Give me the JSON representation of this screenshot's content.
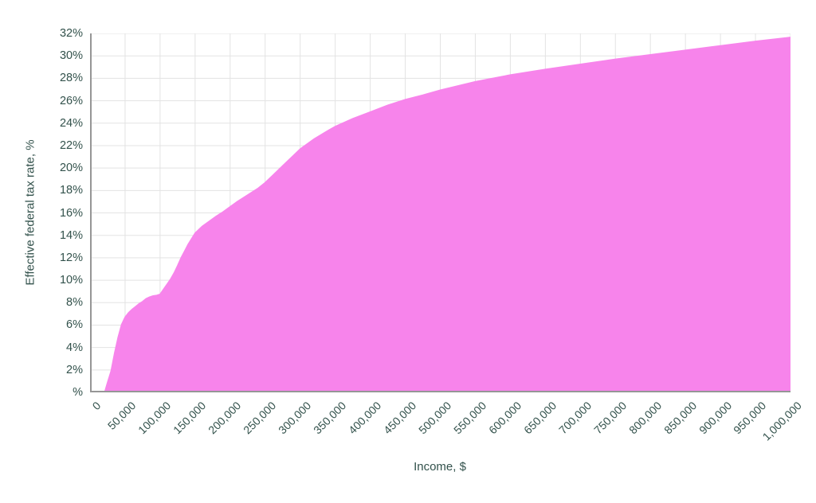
{
  "chart_data": {
    "type": "area",
    "title": "",
    "xlabel": "Income, $",
    "ylabel": "Effective federal tax rate, %",
    "xlim": [
      0,
      1000000
    ],
    "ylim": [
      0,
      32
    ],
    "grid": true,
    "legend": false,
    "x_tick_labels": [
      "0",
      "50,000",
      "100,000",
      "150,000",
      "200,000",
      "250,000",
      "300,000",
      "350,000",
      "400,000",
      "450,000",
      "500,000",
      "550,000",
      "600,000",
      "650,000",
      "700,000",
      "750,000",
      "800,000",
      "850,000",
      "900,000",
      "950,000",
      "1,000,000"
    ],
    "y_tick_labels": [
      "%",
      "2%",
      "4%",
      "6%",
      "8%",
      "10%",
      "12%",
      "14%",
      "16%",
      "18%",
      "20%",
      "22%",
      "24%",
      "26%",
      "28%",
      "30%",
      "32%"
    ],
    "colors": {
      "fill": "#F784EB",
      "grid": "#E3E3E3",
      "axis": "#969696",
      "text": "#33524C",
      "background": "#FFFFFF"
    },
    "series": [
      {
        "name": "effective-federal-tax-rate",
        "points": [
          [
            0,
            0
          ],
          [
            10000,
            0
          ],
          [
            20000,
            0
          ],
          [
            21000,
            0.05
          ],
          [
            25000,
            0.9
          ],
          [
            30000,
            1.9
          ],
          [
            35000,
            3.5
          ],
          [
            40000,
            4.9
          ],
          [
            45000,
            6.05
          ],
          [
            50000,
            6.7
          ],
          [
            55000,
            7.1
          ],
          [
            60000,
            7.4
          ],
          [
            65000,
            7.65
          ],
          [
            70000,
            7.9
          ],
          [
            75000,
            8.1
          ],
          [
            80000,
            8.35
          ],
          [
            85000,
            8.5
          ],
          [
            90000,
            8.6
          ],
          [
            95000,
            8.65
          ],
          [
            100000,
            8.75
          ],
          [
            105000,
            9.2
          ],
          [
            110000,
            9.65
          ],
          [
            115000,
            10.1
          ],
          [
            120000,
            10.65
          ],
          [
            125000,
            11.3
          ],
          [
            130000,
            12.0
          ],
          [
            135000,
            12.6
          ],
          [
            140000,
            13.2
          ],
          [
            145000,
            13.7
          ],
          [
            150000,
            14.2
          ],
          [
            160000,
            14.8
          ],
          [
            170000,
            15.25
          ],
          [
            180000,
            15.7
          ],
          [
            190000,
            16.1
          ],
          [
            200000,
            16.55
          ],
          [
            210000,
            17.0
          ],
          [
            220000,
            17.4
          ],
          [
            230000,
            17.8
          ],
          [
            240000,
            18.2
          ],
          [
            250000,
            18.7
          ],
          [
            260000,
            19.3
          ],
          [
            270000,
            19.9
          ],
          [
            280000,
            20.5
          ],
          [
            290000,
            21.1
          ],
          [
            300000,
            21.7
          ],
          [
            320000,
            22.6
          ],
          [
            340000,
            23.35
          ],
          [
            350000,
            23.7
          ],
          [
            375000,
            24.4
          ],
          [
            400000,
            25.0
          ],
          [
            425000,
            25.6
          ],
          [
            450000,
            26.1
          ],
          [
            475000,
            26.5
          ],
          [
            500000,
            26.95
          ],
          [
            550000,
            27.7
          ],
          [
            600000,
            28.3
          ],
          [
            650000,
            28.8
          ],
          [
            700000,
            29.25
          ],
          [
            750000,
            29.7
          ],
          [
            800000,
            30.1
          ],
          [
            850000,
            30.5
          ],
          [
            900000,
            30.9
          ],
          [
            950000,
            31.3
          ],
          [
            1000000,
            31.65
          ]
        ]
      }
    ]
  }
}
